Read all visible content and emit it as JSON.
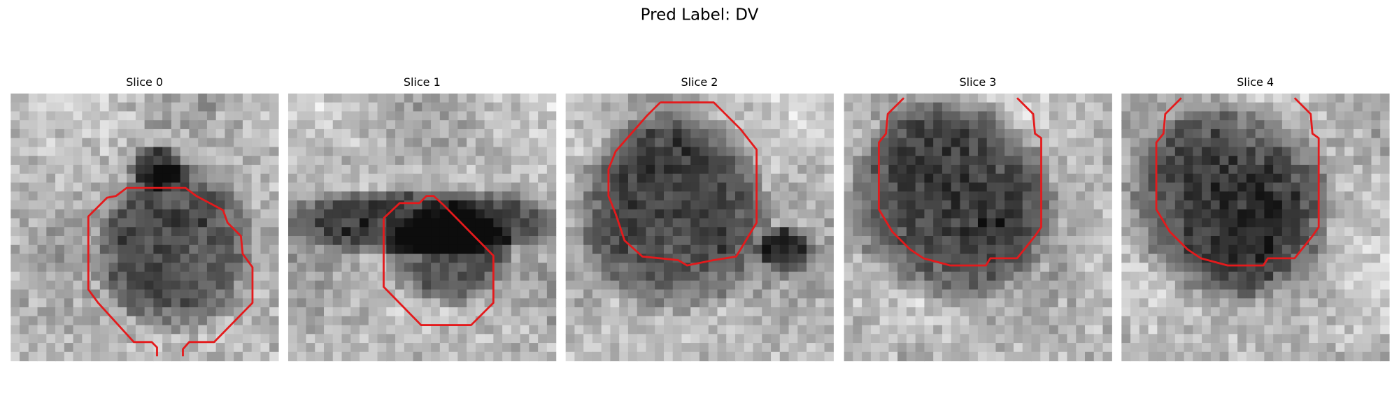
{
  "title": "Pred Label: DV",
  "slices": [
    "Slice 0",
    "Slice 1",
    "Slice 2",
    "Slice 3",
    "Slice 4"
  ]
}
